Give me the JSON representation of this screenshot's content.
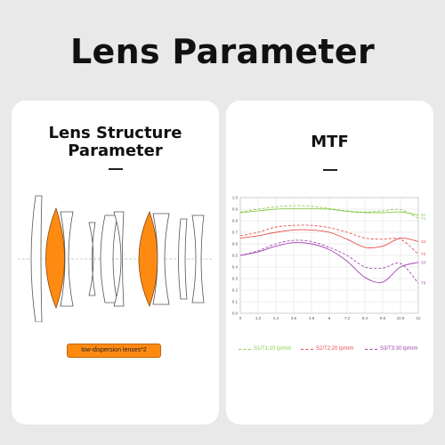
{
  "page": {
    "title": "Lens Parameter"
  },
  "left_card": {
    "title_line1": "Lens Structure",
    "title_line2": "Parameter",
    "badge": "low-dispersion lenses*2",
    "colors": {
      "highlight": "#ff8a12",
      "outline": "#555555"
    }
  },
  "right_card": {
    "title": "MTF"
  },
  "chart_data": {
    "type": "line",
    "title": "MTF",
    "x_ticks": [
      "0",
      "1.2",
      "2.4",
      "3.6",
      "4.8",
      "6",
      "7.2",
      "8.4",
      "9.6",
      "10.8",
      "12"
    ],
    "y_ticks": [
      "0.0",
      "0.1",
      "0.2",
      "0.3",
      "0.4",
      "0.5",
      "0.6",
      "0.7",
      "0.8",
      "0.9",
      "1.0"
    ],
    "xlim": [
      0,
      12
    ],
    "ylim": [
      0,
      1
    ],
    "grid": true,
    "legend_position": "bottom",
    "legend": [
      {
        "label": "S1/T1:10 lp/mm",
        "color": "#8fcc4d"
      },
      {
        "label": "S2/T2:20 lp/mm",
        "color": "#e8504f"
      },
      {
        "label": "S3/T3:30 lp/mm",
        "color": "#a544b4"
      }
    ],
    "series": [
      {
        "name": "S1",
        "color": "#8fcc4d",
        "dashed": false,
        "x": [
          0,
          1.2,
          2.4,
          3.6,
          4.8,
          6,
          7.2,
          8.4,
          9.6,
          10.8,
          12
        ],
        "y": [
          0.87,
          0.885,
          0.9,
          0.905,
          0.905,
          0.9,
          0.88,
          0.87,
          0.87,
          0.875,
          0.85
        ]
      },
      {
        "name": "T1",
        "color": "#8fcc4d",
        "dashed": true,
        "x": [
          0,
          1.2,
          2.4,
          3.6,
          4.8,
          6,
          7.2,
          8.4,
          9.6,
          10.8,
          12
        ],
        "y": [
          0.875,
          0.9,
          0.92,
          0.93,
          0.925,
          0.905,
          0.885,
          0.875,
          0.885,
          0.895,
          0.82
        ]
      },
      {
        "name": "S2",
        "color": "#e8504f",
        "dashed": false,
        "x": [
          0,
          1.2,
          2.4,
          3.6,
          4.8,
          6,
          7.2,
          8.4,
          9.6,
          10.8,
          12
        ],
        "y": [
          0.65,
          0.67,
          0.7,
          0.72,
          0.72,
          0.7,
          0.64,
          0.57,
          0.58,
          0.65,
          0.62
        ]
      },
      {
        "name": "T2",
        "color": "#e8504f",
        "dashed": true,
        "x": [
          0,
          1.2,
          2.4,
          3.6,
          4.8,
          6,
          7.2,
          8.4,
          9.6,
          10.8,
          12
        ],
        "y": [
          0.67,
          0.7,
          0.745,
          0.76,
          0.76,
          0.74,
          0.7,
          0.65,
          0.64,
          0.64,
          0.51
        ]
      },
      {
        "name": "S3",
        "color": "#a544b4",
        "dashed": false,
        "x": [
          0,
          1.2,
          2.4,
          3.6,
          4.8,
          6,
          7.2,
          8.4,
          9.6,
          10.8,
          12
        ],
        "y": [
          0.5,
          0.53,
          0.58,
          0.61,
          0.6,
          0.55,
          0.45,
          0.31,
          0.27,
          0.4,
          0.44
        ]
      },
      {
        "name": "T3",
        "color": "#a544b4",
        "dashed": true,
        "x": [
          0,
          1.2,
          2.4,
          3.6,
          4.8,
          6,
          7.2,
          8.4,
          9.6,
          10.8,
          12
        ],
        "y": [
          0.5,
          0.54,
          0.6,
          0.63,
          0.62,
          0.57,
          0.5,
          0.4,
          0.39,
          0.43,
          0.26
        ]
      }
    ]
  }
}
